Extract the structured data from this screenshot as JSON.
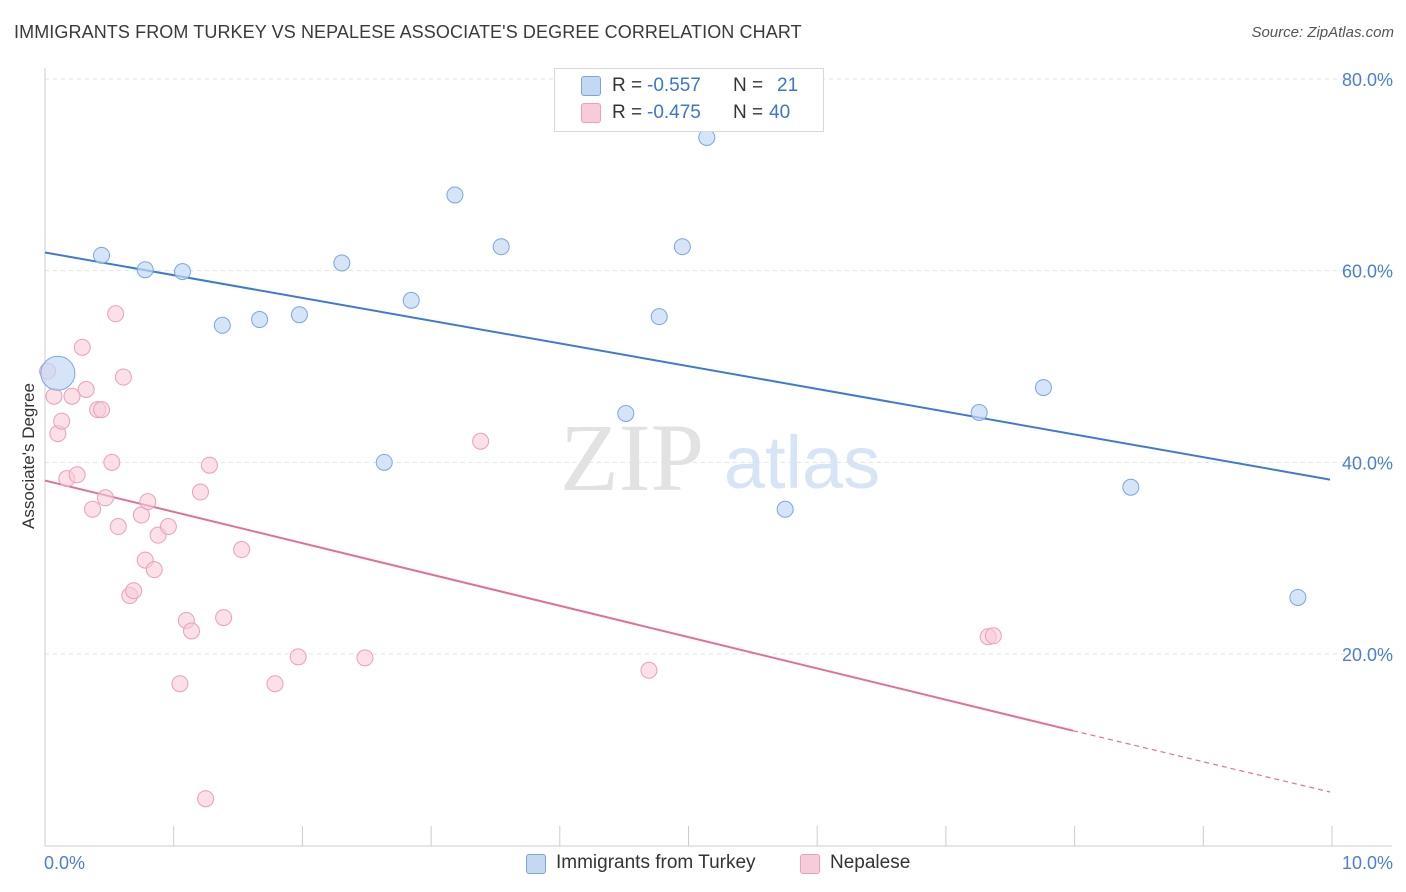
{
  "header": {
    "title": "IMMIGRANTS FROM TURKEY VS NEPALESE ASSOCIATE'S DEGREE CORRELATION CHART",
    "source": "Source: ZipAtlas.com"
  },
  "legend": {
    "rows": [
      {
        "r_label": "R =",
        "r_value": "-0.557",
        "n_label": "N =",
        "n_value": "21"
      },
      {
        "r_label": "R =",
        "r_value": "-0.475",
        "n_label": "N =",
        "n_value": "40"
      }
    ]
  },
  "bottom_legend": {
    "series1": "Immigrants from Turkey",
    "series2": "Nepalese"
  },
  "watermark": {
    "zip": "ZIP",
    "atlas": "atlas"
  },
  "chart_data": {
    "type": "scatter",
    "title": "IMMIGRANTS FROM TURKEY VS NEPALESE ASSOCIATE'S DEGREE CORRELATION CHART",
    "ylabel": "Associate's Degree",
    "xlabel": "",
    "x_tick_labels": [
      "0.0%",
      "10.0%"
    ],
    "y_tick_labels": [
      "20.0%",
      "40.0%",
      "60.0%",
      "80.0%"
    ],
    "xlim": [
      0,
      10
    ],
    "ylim": [
      2,
      83
    ],
    "y_ticks": [
      20,
      40,
      60,
      80
    ],
    "grid": true,
    "legend_position": "top-center",
    "colors": {
      "series1_fill": "#c5d8f3",
      "series1_stroke": "#7aa6e0",
      "series1_line": "#3d7ad6",
      "series2_fill": "#f8cbd8",
      "series2_stroke": "#eaa0b8",
      "series2_line": "#e0709a",
      "tick_label": "#4a7fd1",
      "grid": "#e3e3e3"
    },
    "series": [
      {
        "name": "Immigrants from Turkey",
        "trend": {
          "x0": 0,
          "y0": 61.9,
          "x1": 10,
          "y1": 38.2
        },
        "points": [
          {
            "x": 0.1,
            "y": 49.3,
            "big": true
          },
          {
            "x": 0.44,
            "y": 61.6
          },
          {
            "x": 0.78,
            "y": 60.1
          },
          {
            "x": 1.07,
            "y": 59.9
          },
          {
            "x": 1.38,
            "y": 54.3
          },
          {
            "x": 1.67,
            "y": 54.9
          },
          {
            "x": 1.98,
            "y": 55.4
          },
          {
            "x": 2.31,
            "y": 60.8
          },
          {
            "x": 2.85,
            "y": 56.9
          },
          {
            "x": 3.19,
            "y": 67.9
          },
          {
            "x": 3.55,
            "y": 62.5
          },
          {
            "x": 4.52,
            "y": 45.1
          },
          {
            "x": 2.64,
            "y": 40.0
          },
          {
            "x": 4.78,
            "y": 55.2
          },
          {
            "x": 4.96,
            "y": 62.5
          },
          {
            "x": 5.15,
            "y": 73.9
          },
          {
            "x": 5.76,
            "y": 35.1
          },
          {
            "x": 7.27,
            "y": 45.2
          },
          {
            "x": 7.77,
            "y": 47.8
          },
          {
            "x": 8.45,
            "y": 37.4
          },
          {
            "x": 9.75,
            "y": 25.9
          }
        ]
      },
      {
        "name": "Nepalese",
        "trend": {
          "x0": 0,
          "y0": 38.1,
          "x1": 8.0,
          "y1": 12.0
        },
        "trend_dashed": {
          "x0": 8.0,
          "y0": 12.0,
          "x1": 10,
          "y1": 5.6
        },
        "points": [
          {
            "x": 0.02,
            "y": 49.5
          },
          {
            "x": 0.07,
            "y": 46.9
          },
          {
            "x": 0.1,
            "y": 43.0
          },
          {
            "x": 0.13,
            "y": 44.3
          },
          {
            "x": 0.17,
            "y": 38.3
          },
          {
            "x": 0.21,
            "y": 46.9
          },
          {
            "x": 0.25,
            "y": 38.7
          },
          {
            "x": 0.29,
            "y": 52.0
          },
          {
            "x": 0.32,
            "y": 47.6
          },
          {
            "x": 0.37,
            "y": 35.1
          },
          {
            "x": 0.41,
            "y": 45.5
          },
          {
            "x": 0.44,
            "y": 45.5
          },
          {
            "x": 0.47,
            "y": 36.3
          },
          {
            "x": 0.52,
            "y": 40.0
          },
          {
            "x": 0.55,
            "y": 55.5
          },
          {
            "x": 0.57,
            "y": 33.3
          },
          {
            "x": 0.61,
            "y": 48.9
          },
          {
            "x": 0.66,
            "y": 26.1
          },
          {
            "x": 0.69,
            "y": 26.6
          },
          {
            "x": 0.75,
            "y": 34.5
          },
          {
            "x": 0.78,
            "y": 29.8
          },
          {
            "x": 0.8,
            "y": 35.9
          },
          {
            "x": 0.85,
            "y": 28.8
          },
          {
            "x": 0.88,
            "y": 32.4
          },
          {
            "x": 0.96,
            "y": 33.3
          },
          {
            "x": 1.05,
            "y": 16.9
          },
          {
            "x": 1.1,
            "y": 23.5
          },
          {
            "x": 1.14,
            "y": 22.4
          },
          {
            "x": 1.21,
            "y": 36.9
          },
          {
            "x": 1.25,
            "y": 4.9
          },
          {
            "x": 1.28,
            "y": 39.7
          },
          {
            "x": 1.39,
            "y": 23.8
          },
          {
            "x": 1.53,
            "y": 30.9
          },
          {
            "x": 1.79,
            "y": 16.9
          },
          {
            "x": 1.97,
            "y": 19.7
          },
          {
            "x": 2.49,
            "y": 19.6
          },
          {
            "x": 3.39,
            "y": 42.2
          },
          {
            "x": 4.7,
            "y": 18.3
          },
          {
            "x": 7.34,
            "y": 21.8
          },
          {
            "x": 7.38,
            "y": 21.9
          }
        ]
      }
    ]
  }
}
